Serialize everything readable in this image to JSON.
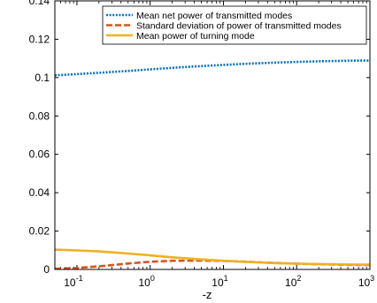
{
  "chart_data": {
    "type": "line",
    "title": "",
    "xlabel": "-z",
    "ylabel": "",
    "xscale": "log",
    "xlim": [
      0.05,
      1000
    ],
    "ylim": [
      0,
      0.14
    ],
    "grid": false,
    "legend_position": "top-right",
    "x_ticks": [
      0.1,
      1,
      10,
      100,
      1000
    ],
    "x_tick_labels": [
      {
        "base": "10",
        "exp": "-1"
      },
      {
        "base": "10",
        "exp": "0"
      },
      {
        "base": "10",
        "exp": "1"
      },
      {
        "base": "10",
        "exp": "2"
      },
      {
        "base": "10",
        "exp": "3"
      }
    ],
    "y_ticks": [
      0,
      0.02,
      0.04,
      0.06,
      0.08,
      0.1,
      0.12,
      0.14
    ],
    "y_tick_labels": [
      "0",
      "0.02",
      "0.04",
      "0.06",
      "0.08",
      "0.1",
      "0.12",
      "0.14"
    ],
    "x": [
      0.05,
      0.1,
      0.2,
      0.5,
      1,
      2,
      5,
      10,
      20,
      50,
      100,
      200,
      500,
      1000
    ],
    "series": [
      {
        "name": "Mean net power of transmitted modes",
        "color": "#0072BD",
        "style": "dotted",
        "values": [
          0.1012,
          0.1018,
          0.1025,
          0.1035,
          0.1043,
          0.1051,
          0.106,
          0.1066,
          0.1072,
          0.1078,
          0.1082,
          0.1085,
          0.1088,
          0.1089
        ]
      },
      {
        "name": "Standard deviation of power of transmitted modes",
        "color": "#D95319",
        "style": "dashed",
        "values": [
          0.0003,
          0.0008,
          0.0016,
          0.0031,
          0.004,
          0.0045,
          0.0046,
          0.0044,
          0.004,
          0.0034,
          0.003,
          0.0027,
          0.0024,
          0.0023
        ]
      },
      {
        "name": "Mean power of turning mode",
        "color": "#EDB120",
        "style": "solid",
        "values": [
          0.0103,
          0.0099,
          0.0094,
          0.0083,
          0.0073,
          0.0063,
          0.0052,
          0.0045,
          0.0039,
          0.0033,
          0.003,
          0.0028,
          0.0026,
          0.0025
        ]
      }
    ]
  }
}
